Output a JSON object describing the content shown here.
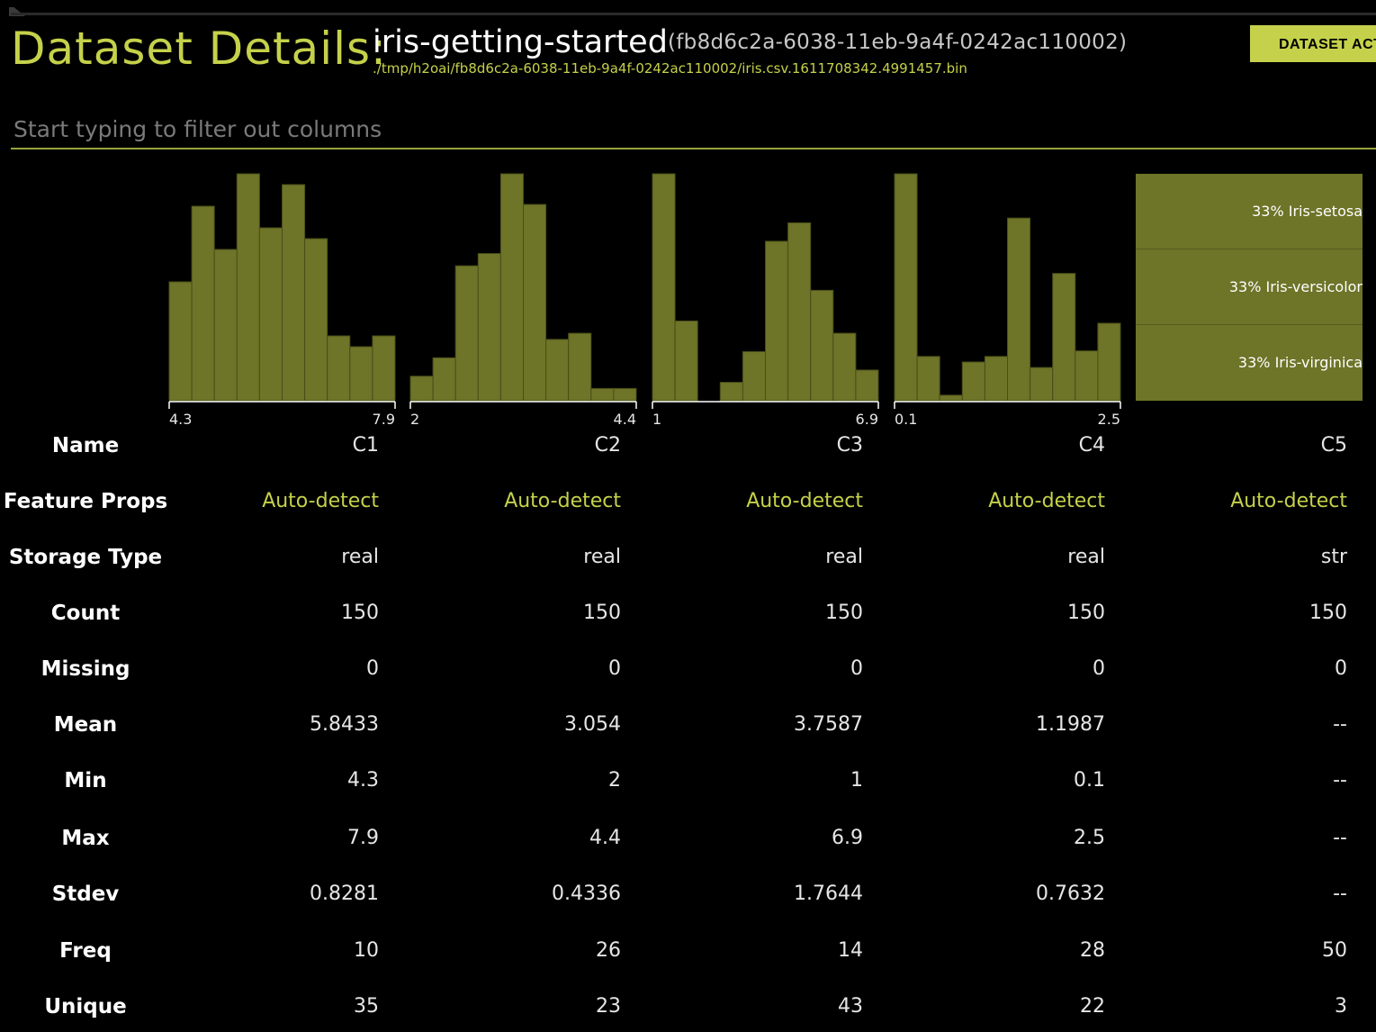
{
  "header": {
    "title": "Dataset Details:",
    "dataset_name": "iris-getting-started",
    "dataset_id": "(fb8d6c2a-6038-11eb-9a4f-0242ac110002)",
    "dataset_path": "./tmp/h2oai/fb8d6c2a-6038-11eb-9a4f-0242ac110002/iris.csv.1611708342.4991457.bin",
    "actions_label": "DATASET ACTIONS"
  },
  "filter": {
    "placeholder": "Start typing to filter out columns"
  },
  "colors": {
    "accent": "#c5d14a",
    "bar": "#6e7428",
    "background": "#000000"
  },
  "chart_data": [
    {
      "type": "bar",
      "column": "C1",
      "x_min_label": "4.3",
      "x_max_label": "7.9",
      "xlim": [
        4.3,
        7.9
      ],
      "values": [
        11,
        18,
        14,
        21,
        16,
        20,
        15,
        6,
        5,
        6
      ]
    },
    {
      "type": "bar",
      "column": "C2",
      "x_min_label": "2",
      "x_max_label": "4.4",
      "xlim": [
        2,
        4.4
      ],
      "values": [
        4,
        7,
        22,
        24,
        37,
        32,
        10,
        11,
        2,
        2
      ]
    },
    {
      "type": "bar",
      "column": "C3",
      "x_min_label": "1",
      "x_max_label": "6.9",
      "xlim": [
        1,
        6.9
      ],
      "values": [
        37,
        13,
        0,
        3,
        8,
        26,
        29,
        18,
        11,
        5
      ]
    },
    {
      "type": "bar",
      "column": "C4",
      "x_min_label": "0.1",
      "x_max_label": "2.5",
      "xlim": [
        0.1,
        2.5
      ],
      "values": [
        41,
        8,
        1,
        7,
        8,
        33,
        6,
        23,
        9,
        14
      ]
    },
    {
      "type": "pie",
      "column": "C5",
      "categories": [
        "33% Iris-setosa",
        "33% Iris-versicolor",
        "33% Iris-virginica"
      ],
      "values": [
        33,
        33,
        33
      ]
    }
  ],
  "table": {
    "rows": [
      {
        "label": "Name",
        "values": [
          "C1",
          "C2",
          "C3",
          "C4",
          "C5"
        ]
      },
      {
        "label": "Feature Props",
        "values": [
          "Auto-detect",
          "Auto-detect",
          "Auto-detect",
          "Auto-detect",
          "Auto-detect"
        ]
      },
      {
        "label": "Storage Type",
        "values": [
          "real",
          "real",
          "real",
          "real",
          "str"
        ]
      },
      {
        "label": "Count",
        "values": [
          "150",
          "150",
          "150",
          "150",
          "150"
        ]
      },
      {
        "label": "Missing",
        "values": [
          "0",
          "0",
          "0",
          "0",
          "0"
        ]
      },
      {
        "label": "Mean",
        "values": [
          "5.8433",
          "3.054",
          "3.7587",
          "1.1987",
          "--"
        ]
      },
      {
        "label": "Min",
        "values": [
          "4.3",
          "2",
          "1",
          "0.1",
          "--"
        ]
      },
      {
        "label": "Max",
        "values": [
          "7.9",
          "4.4",
          "6.9",
          "2.5",
          "--"
        ]
      },
      {
        "label": "Stdev",
        "values": [
          "0.8281",
          "0.4336",
          "1.7644",
          "0.7632",
          "--"
        ]
      },
      {
        "label": "Freq",
        "values": [
          "10",
          "26",
          "14",
          "28",
          "50"
        ]
      },
      {
        "label": "Unique",
        "values": [
          "35",
          "23",
          "43",
          "22",
          "3"
        ]
      }
    ]
  }
}
